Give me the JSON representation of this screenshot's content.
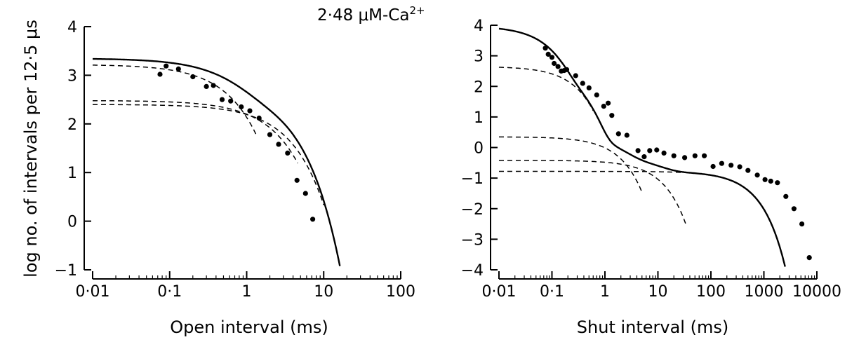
{
  "chart_data": [
    {
      "type": "line",
      "subtype": "log-histogram-fit",
      "xlabel": "Open interval (ms)",
      "ylabel": "log no. of intervals per 12·5 μs",
      "x_scale": "log",
      "xlim": [
        0.01,
        100
      ],
      "ylim": [
        -1,
        4
      ],
      "x_ticks": [
        0.01,
        0.1,
        1,
        10,
        100
      ],
      "x_tick_labels": [
        "0·01",
        "0·1",
        "1",
        "10",
        "100"
      ],
      "y_ticks": [
        -1,
        0,
        1,
        2,
        3,
        4
      ],
      "y_tick_labels": [
        "−1",
        "0",
        "1",
        "2",
        "3",
        "4"
      ],
      "grid": false,
      "points": [
        {
          "x": 0.075,
          "y": 3.02
        },
        {
          "x": 0.09,
          "y": 3.19
        },
        {
          "x": 0.13,
          "y": 3.13
        },
        {
          "x": 0.2,
          "y": 2.97
        },
        {
          "x": 0.3,
          "y": 2.77
        },
        {
          "x": 0.37,
          "y": 2.79
        },
        {
          "x": 0.48,
          "y": 2.5
        },
        {
          "x": 0.62,
          "y": 2.47
        },
        {
          "x": 0.85,
          "y": 2.35
        },
        {
          "x": 1.1,
          "y": 2.27
        },
        {
          "x": 1.45,
          "y": 2.12
        },
        {
          "x": 2.0,
          "y": 1.78
        },
        {
          "x": 2.6,
          "y": 1.58
        },
        {
          "x": 3.4,
          "y": 1.4
        },
        {
          "x": 4.5,
          "y": 0.84
        },
        {
          "x": 5.8,
          "y": 0.57
        },
        {
          "x": 7.2,
          "y": 0.04
        }
      ],
      "fit_total_params": {
        "components": [
          {
            "tau": 0.4,
            "amp": 3.22
          },
          {
            "tau": 1.55,
            "amp": 2.48
          },
          {
            "tau": 2.1,
            "amp": 2.4
          }
        ]
      },
      "component_curves": [
        {
          "amp": 3.22,
          "tau": 0.4,
          "x_end": 1.35
        },
        {
          "amp": 2.48,
          "tau": 1.55,
          "x_end": 4.6
        },
        {
          "amp": 2.4,
          "tau": 2.1,
          "x_end": 10
        }
      ]
    },
    {
      "type": "line",
      "subtype": "log-histogram-fit",
      "xlabel": "Shut interval (ms)",
      "ylabel": "",
      "x_scale": "log",
      "xlim": [
        0.01,
        10000
      ],
      "ylim": [
        -4,
        4
      ],
      "x_ticks": [
        0.01,
        0.1,
        1,
        10,
        100,
        1000,
        10000
      ],
      "x_tick_labels": [
        "0·01",
        "0·1",
        "1",
        "10",
        "100",
        "1000",
        "10000"
      ],
      "y_ticks": [
        -4,
        -3,
        -2,
        -1,
        0,
        1,
        2,
        3,
        4
      ],
      "y_tick_labels": [
        "−4",
        "−3",
        "−2",
        "−1",
        "0",
        "1",
        "2",
        "3",
        "4"
      ],
      "grid": false,
      "points": [
        {
          "x": 0.075,
          "y": 3.25
        },
        {
          "x": 0.085,
          "y": 3.05
        },
        {
          "x": 0.1,
          "y": 2.95
        },
        {
          "x": 0.11,
          "y": 2.75
        },
        {
          "x": 0.13,
          "y": 2.65
        },
        {
          "x": 0.15,
          "y": 2.5
        },
        {
          "x": 0.17,
          "y": 2.52
        },
        {
          "x": 0.19,
          "y": 2.55
        },
        {
          "x": 0.28,
          "y": 2.35
        },
        {
          "x": 0.38,
          "y": 2.1
        },
        {
          "x": 0.5,
          "y": 1.95
        },
        {
          "x": 0.7,
          "y": 1.72
        },
        {
          "x": 0.95,
          "y": 1.35
        },
        {
          "x": 1.15,
          "y": 1.45
        },
        {
          "x": 1.35,
          "y": 1.05
        },
        {
          "x": 1.8,
          "y": 0.45
        },
        {
          "x": 2.6,
          "y": 0.4
        },
        {
          "x": 4.2,
          "y": -0.1
        },
        {
          "x": 5.5,
          "y": -0.3
        },
        {
          "x": 7.0,
          "y": -0.1
        },
        {
          "x": 9.5,
          "y": -0.08
        },
        {
          "x": 13.0,
          "y": -0.18
        },
        {
          "x": 20.0,
          "y": -0.27
        },
        {
          "x": 32.0,
          "y": -0.33
        },
        {
          "x": 50.0,
          "y": -0.27
        },
        {
          "x": 75.0,
          "y": -0.27
        },
        {
          "x": 110.0,
          "y": -0.62
        },
        {
          "x": 160.0,
          "y": -0.52
        },
        {
          "x": 240.0,
          "y": -0.58
        },
        {
          "x": 350.0,
          "y": -0.63
        },
        {
          "x": 500.0,
          "y": -0.75
        },
        {
          "x": 750.0,
          "y": -0.9
        },
        {
          "x": 1050.0,
          "y": -1.05
        },
        {
          "x": 1350.0,
          "y": -1.1
        },
        {
          "x": 1800.0,
          "y": -1.15
        },
        {
          "x": 2600.0,
          "y": -1.6
        },
        {
          "x": 3700.0,
          "y": -2.0
        },
        {
          "x": 5200.0,
          "y": -2.5
        },
        {
          "x": 7200.0,
          "y": -3.6
        }
      ],
      "fit_total_params": {
        "components": [
          {
            "tau": 0.05,
            "amp": 3.95
          },
          {
            "tau": 0.18,
            "amp": 2.65
          },
          {
            "tau": 1.2,
            "amp": 0.35
          },
          {
            "tau": 7.0,
            "amp": -0.42
          },
          {
            "tau": 350.0,
            "amp": -0.78
          }
        ]
      },
      "component_curves": [
        {
          "amp": 2.65,
          "tau": 0.18,
          "x_end": 0.6
        },
        {
          "amp": 0.35,
          "tau": 1.2,
          "x_end": 5.0
        },
        {
          "amp": -0.42,
          "tau": 7.0,
          "x_end": 35
        },
        {
          "amp": -0.78,
          "tau": 350.0,
          "x_end": 1700
        }
      ]
    }
  ],
  "annotation": {
    "condition_text": "2·48 μM-Ca",
    "condition_sup": "2+"
  }
}
